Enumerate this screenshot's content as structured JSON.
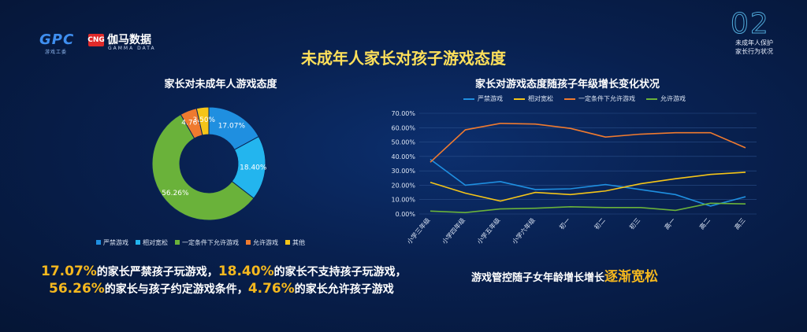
{
  "header": {
    "logo_gpc": "GPC",
    "logo_gpc_sub": "游戏工委",
    "logo_cng": "CNG",
    "logo_gamma": "伽马数据",
    "logo_gamma_sub": "GAMMA DATA",
    "page_num": "02",
    "page_tag_line1": "未成年人保护",
    "page_tag_line2": "家长行为状况",
    "main_title": "未成年人家长对孩子游戏态度"
  },
  "colors": {
    "blue": "#1f8fe0",
    "cyan": "#23b5ee",
    "green": "#6ab23a",
    "orange": "#ef7a2f",
    "yellow": "#f5c518",
    "highlight": "#f5b81e",
    "title": "#ffe05a"
  },
  "chart_data": [
    {
      "type": "pie",
      "title": "家长对未成年人游戏态度",
      "labels": [
        "严禁游戏",
        "相对宽松",
        "一定条件下允许游戏",
        "允许游戏",
        "其他"
      ],
      "values": [
        17.07,
        18.4,
        56.26,
        4.76,
        3.5
      ],
      "value_labels": [
        "17.07%",
        "18.40%",
        "56.26%",
        "4.76%",
        "3.50%"
      ],
      "colors": [
        "#1f8fe0",
        "#23b5ee",
        "#6ab23a",
        "#ef7a2f",
        "#f5c518"
      ],
      "donut": true,
      "legend": "bottom"
    },
    {
      "type": "line",
      "title": "家长对游戏态度随孩子年级增长变化状况",
      "categories": [
        "小学三年级",
        "小学四年级",
        "小学五年级",
        "小学六年级",
        "初一",
        "初二",
        "初三",
        "高一",
        "高二",
        "高三"
      ],
      "yticks": [
        "0.00%",
        "10.00%",
        "20.00%",
        "30.00%",
        "40.00%",
        "50.00%",
        "60.00%",
        "70.00%"
      ],
      "ylim": [
        0,
        70
      ],
      "grid": true,
      "legend": "top",
      "series": [
        {
          "name": "严禁游戏",
          "color": "#1f8fe0",
          "values": [
            38,
            20,
            22.5,
            17,
            17.5,
            20.5,
            17,
            13.5,
            5.5,
            12
          ]
        },
        {
          "name": "相对宽松",
          "color": "#f5c518",
          "values": [
            22,
            14.5,
            9,
            15,
            13.5,
            16,
            21,
            24.5,
            27.5,
            29
          ]
        },
        {
          "name": "一定条件下允许游戏",
          "color": "#ef7a2f",
          "values": [
            36,
            58.5,
            63,
            62.5,
            59.5,
            53.5,
            55.5,
            56.5,
            56.5,
            46
          ]
        },
        {
          "name": "允许游戏",
          "color": "#6ab23a",
          "values": [
            2,
            1,
            3.5,
            4,
            5,
            4.5,
            4.5,
            2.5,
            7.5,
            7
          ]
        }
      ]
    }
  ],
  "summary": {
    "p1": "17.07%",
    "t1": "的家长严禁孩子玩游戏，",
    "p2": "18.40%",
    "t2": "的家长不支持孩子玩游戏，",
    "p3": "56.26%",
    "t3": "的家长与孩子约定游戏条件，",
    "p4": "4.76%",
    "t4": "的家长允许孩子游戏"
  },
  "trend": {
    "prefix": "游戏管控随子女年龄增长增长",
    "emphasis": "逐渐宽松"
  }
}
